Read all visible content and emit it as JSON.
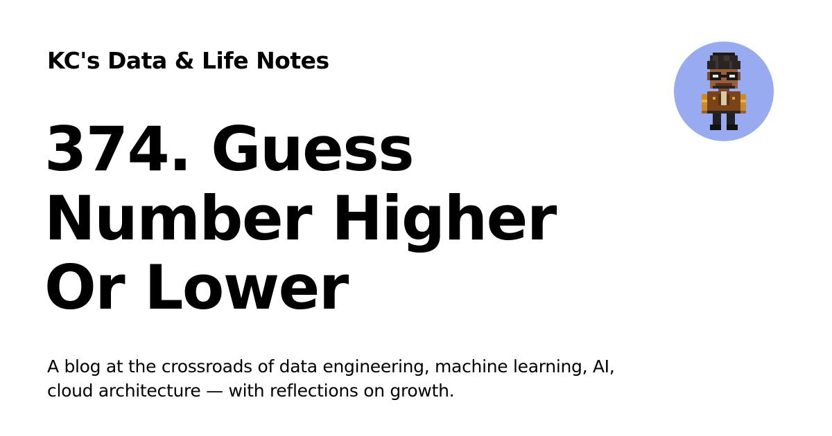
{
  "site": {
    "title": "KC's Data & Life Notes"
  },
  "post": {
    "title": "374. Guess Number Higher Or Lower"
  },
  "site_description": "A blog at the crossroads of data engineering, machine learning, AI, cloud architecture — with reflections on growth.",
  "avatar": {
    "icon": "pixel-character-avatar-icon",
    "background_color": "#98aaf0"
  }
}
